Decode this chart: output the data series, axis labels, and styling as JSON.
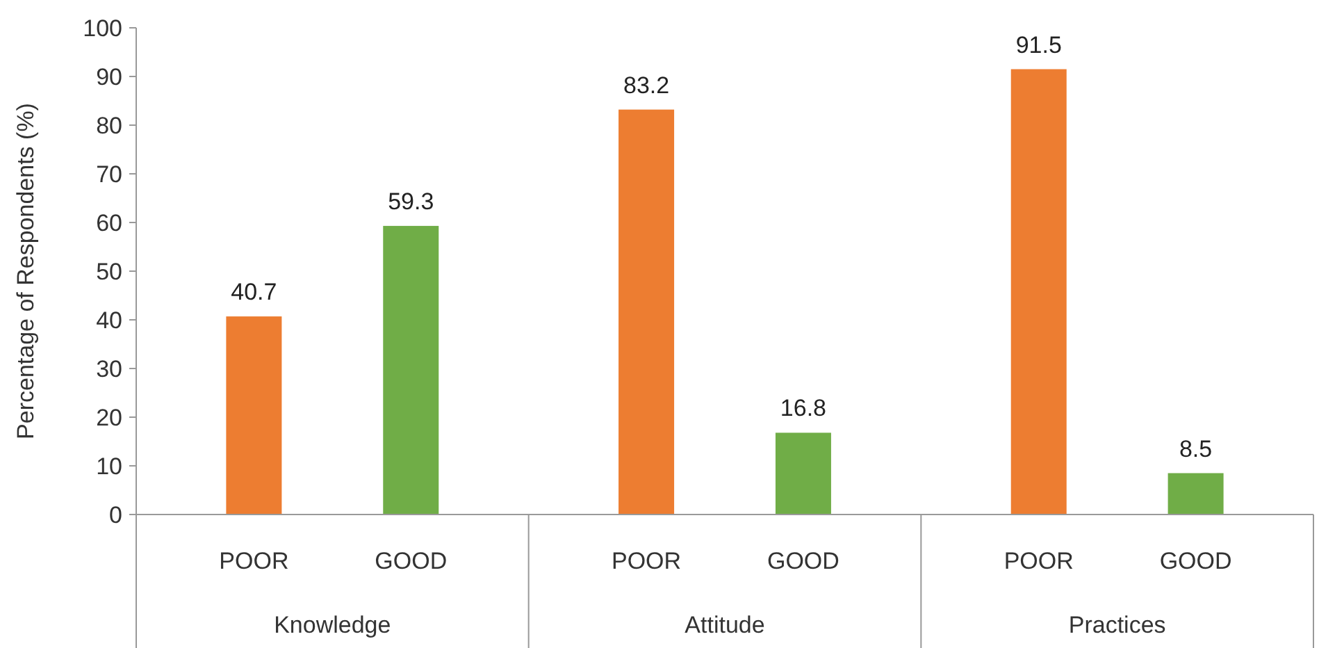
{
  "chart_data": {
    "type": "bar",
    "ylabel": "Percentage of Respondents (%)",
    "categories": [
      "Knowledge",
      "Attitude",
      "Practices"
    ],
    "series": [
      {
        "name": "POOR",
        "color": "#ed7d31",
        "values": [
          40.7,
          83.2,
          91.5
        ]
      },
      {
        "name": "GOOD",
        "color": "#70ad47",
        "values": [
          59.3,
          16.8,
          8.5
        ]
      }
    ],
    "ylim": [
      0,
      100
    ],
    "yticks": [
      0,
      10,
      20,
      30,
      40,
      50,
      60,
      70,
      80,
      90,
      100
    ],
    "data_labels": true,
    "grid": false
  }
}
